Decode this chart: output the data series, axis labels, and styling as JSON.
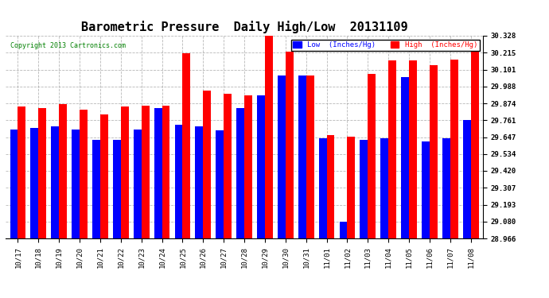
{
  "title": "Barometric Pressure  Daily High/Low  20131109",
  "copyright": "Copyright 2013 Cartronics.com",
  "dates": [
    "10/17",
    "10/18",
    "10/19",
    "10/20",
    "10/21",
    "10/22",
    "10/23",
    "10/24",
    "10/25",
    "10/26",
    "10/27",
    "10/28",
    "10/29",
    "10/30",
    "10/31",
    "11/01",
    "11/02",
    "11/03",
    "11/04",
    "11/05",
    "11/06",
    "11/07",
    "11/08"
  ],
  "low": [
    29.7,
    29.71,
    29.72,
    29.7,
    29.63,
    29.63,
    29.7,
    29.84,
    29.73,
    29.72,
    29.69,
    29.84,
    29.93,
    30.06,
    30.06,
    29.64,
    29.08,
    29.63,
    29.64,
    30.05,
    29.62,
    29.64,
    29.76
  ],
  "high": [
    29.85,
    29.84,
    29.87,
    29.83,
    29.8,
    29.85,
    29.86,
    29.86,
    30.21,
    29.96,
    29.94,
    29.93,
    30.33,
    30.22,
    30.06,
    29.66,
    29.65,
    30.07,
    30.16,
    30.16,
    30.13,
    30.17,
    30.23
  ],
  "ymin": 28.966,
  "ymax": 30.328,
  "yticks": [
    28.966,
    29.08,
    29.193,
    29.307,
    29.42,
    29.534,
    29.647,
    29.761,
    29.874,
    29.988,
    30.101,
    30.215,
    30.328
  ],
  "low_color": "#0000ff",
  "high_color": "#ff0000",
  "bg_color": "#ffffff",
  "grid_color": "#888888",
  "title_fontsize": 11,
  "bar_width": 0.38
}
